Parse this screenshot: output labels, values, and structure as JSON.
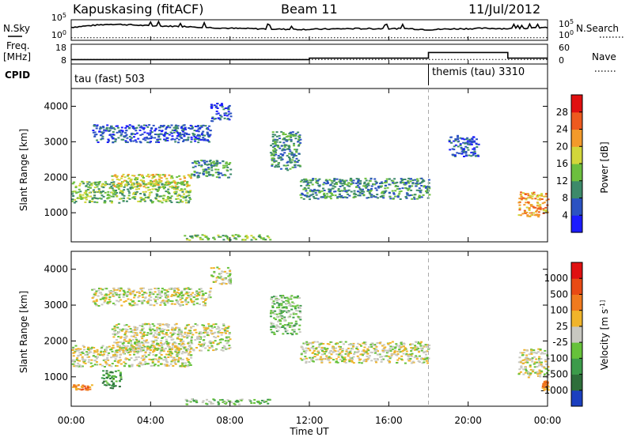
{
  "header": {
    "station": "Kapuskasing (fitACF)",
    "beam": "Beam 11",
    "date": "11/Jul/2012"
  },
  "strip_labels": {
    "nsky": "N.Sky",
    "nsearch": "N.Search",
    "freq_line1": "Freq.",
    "freq_line2": "[MHz]",
    "nave": "Nave",
    "cpid": "CPID"
  },
  "strip_ticks": {
    "noise_left": [
      "10^5",
      "10^0"
    ],
    "noise_right": [
      "10^5",
      "10^0"
    ],
    "freq_left": [
      "18",
      "8"
    ],
    "freq_right": [
      "60",
      "0"
    ]
  },
  "cpid_segments": [
    {
      "label": "tau (fast) 503",
      "start_hour": 0,
      "end_hour": 18.0
    },
    {
      "label": "themis (tau) 3310",
      "start_hour": 18.0,
      "end_hour": 24.0
    }
  ],
  "chart_data": [
    {
      "type": "line",
      "name": "noise",
      "series": [
        {
          "name": "N.Sky",
          "x": [
            0,
            1,
            2,
            3,
            4,
            5,
            6,
            7,
            8,
            9,
            10,
            11,
            12,
            13,
            14,
            15,
            16,
            17,
            18,
            19,
            20,
            21,
            22,
            23,
            24
          ],
          "values": [
            3.3,
            3.8,
            4.2,
            4.0,
            3.7,
            3.6,
            3.5,
            3.2,
            3.0,
            2.9,
            2.8,
            2.7,
            2.7,
            2.8,
            2.9,
            2.9,
            2.9,
            2.9,
            2.6,
            2.8,
            2.9,
            3.0,
            2.9,
            3.0,
            3.2
          ]
        },
        {
          "name": "N.Search",
          "x": [
            0,
            24
          ],
          "values": [
            0.5,
            0.5
          ]
        }
      ],
      "xlim": [
        0,
        24
      ],
      "ylim": [
        0,
        5
      ]
    },
    {
      "type": "line",
      "name": "frequency-nave",
      "series": [
        {
          "name": "Freq.",
          "x": [
            0,
            12,
            12,
            18,
            18,
            22,
            22,
            24
          ],
          "values": [
            10,
            10,
            11,
            11,
            15,
            15,
            11,
            11
          ]
        },
        {
          "name": "Nave",
          "x": [
            0,
            24
          ],
          "values": [
            9,
            9
          ]
        }
      ],
      "xlim": [
        0,
        24
      ],
      "ylim": [
        8,
        18
      ]
    },
    {
      "type": "heatmap",
      "name": "power",
      "xlabel": "",
      "ylabel": "Slant Range [km]",
      "xlim": [
        0,
        24
      ],
      "ylim": [
        180,
        4500
      ],
      "yticks": [
        1000,
        2000,
        3000,
        4000
      ],
      "colorbar": {
        "label": "Power [dB]",
        "ticks": [
          "4",
          "8",
          "12",
          "16",
          "20",
          "24",
          "28"
        ],
        "colors": [
          "#1b1bff",
          "#2b52c2",
          "#3d8a6a",
          "#6cbf3e",
          "#d2d63a",
          "#f39a2b",
          "#ee5a1e",
          "#e01010"
        ]
      },
      "regions": [
        {
          "t0": 0.0,
          "t1": 6.0,
          "r0": 1300,
          "r1": 1900,
          "level": 3
        },
        {
          "t0": 2.0,
          "t1": 6.0,
          "r0": 1750,
          "r1": 2100,
          "level": 4
        },
        {
          "t0": 6.0,
          "t1": 8.0,
          "r0": 2000,
          "r1": 2500,
          "level": 2
        },
        {
          "t0": 1.0,
          "t1": 7.0,
          "r0": 3000,
          "r1": 3500,
          "level": 1
        },
        {
          "t0": 7.0,
          "t1": 8.0,
          "r0": 3600,
          "r1": 4100,
          "level": 1
        },
        {
          "t0": 10.0,
          "t1": 11.5,
          "r0": 2200,
          "r1": 3300,
          "level": 2
        },
        {
          "t0": 11.5,
          "t1": 18.0,
          "r0": 1400,
          "r1": 2000,
          "level": 2
        },
        {
          "t0": 5.5,
          "t1": 10.0,
          "r0": 250,
          "r1": 400,
          "level": 3
        },
        {
          "t0": 22.5,
          "t1": 24.0,
          "r0": 900,
          "r1": 1600,
          "level": 5
        },
        {
          "t0": 19.0,
          "t1": 20.5,
          "r0": 2600,
          "r1": 3200,
          "level": 1
        }
      ]
    },
    {
      "type": "heatmap",
      "name": "velocity",
      "xlabel": "Time UT",
      "ylabel": "Slant Range [km]",
      "xlim": [
        0,
        24
      ],
      "ylim": [
        180,
        4500
      ],
      "yticks": [
        1000,
        2000,
        3000,
        4000
      ],
      "xticks": [
        "00:00",
        "04:00",
        "08:00",
        "12:00",
        "16:00",
        "20:00",
        "00:00"
      ],
      "colorbar": {
        "label": "Velocity [m s^-1]",
        "ticks": [
          "1000",
          "500",
          "100",
          "25",
          "-25",
          "-100",
          "-500",
          "-1000"
        ],
        "colors": [
          "#1b3fbf",
          "#2e6e3a",
          "#3c9b4a",
          "#66c23a",
          "#c8c8c0",
          "#f0b42a",
          "#f07a1e",
          "#e84a14",
          "#e01010"
        ]
      },
      "regions": [
        {
          "t0": 0.0,
          "t1": 6.0,
          "r0": 1300,
          "r1": 1900,
          "level": 4
        },
        {
          "t0": 2.0,
          "t1": 8.0,
          "r0": 1750,
          "r1": 2500,
          "level": 4
        },
        {
          "t0": 1.0,
          "t1": 7.0,
          "r0": 3000,
          "r1": 3500,
          "level": 4
        },
        {
          "t0": 7.0,
          "t1": 8.0,
          "r0": 3600,
          "r1": 4100,
          "level": 4
        },
        {
          "t0": 10.0,
          "t1": 11.5,
          "r0": 2200,
          "r1": 3300,
          "level": 3
        },
        {
          "t0": 11.5,
          "t1": 18.0,
          "r0": 1400,
          "r1": 2000,
          "level": 4
        },
        {
          "t0": 0.0,
          "t1": 1.0,
          "r0": 650,
          "r1": 800,
          "level": 6
        },
        {
          "t0": 1.5,
          "t1": 2.5,
          "r0": 700,
          "r1": 1200,
          "level": 2
        },
        {
          "t0": 5.5,
          "t1": 10.0,
          "r0": 250,
          "r1": 400,
          "level": 3
        },
        {
          "t0": 22.5,
          "t1": 24.0,
          "r0": 1000,
          "r1": 1800,
          "level": 4
        },
        {
          "t0": 23.7,
          "t1": 24.0,
          "r0": 650,
          "r1": 900,
          "level": 6
        }
      ]
    }
  ]
}
